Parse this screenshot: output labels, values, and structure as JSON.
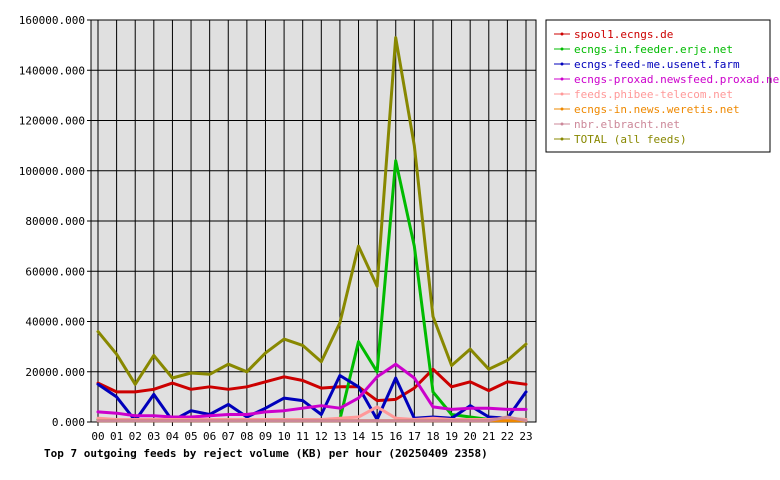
{
  "chart_data": {
    "type": "line",
    "title": "Top 7 outgoing feeds by reject volume (KB) per hour (20250409 2358)",
    "categories": [
      "00",
      "01",
      "02",
      "03",
      "04",
      "05",
      "06",
      "07",
      "08",
      "09",
      "10",
      "11",
      "12",
      "13",
      "14",
      "15",
      "16",
      "17",
      "18",
      "19",
      "20",
      "21",
      "22",
      "23"
    ],
    "yticks": [
      "0.000",
      "20000.000",
      "40000.000",
      "60000.000",
      "80000.000",
      "100000.000",
      "120000.000",
      "140000.000",
      "160000.000"
    ],
    "ylim": [
      0,
      160000
    ],
    "grid": true,
    "legend_position": "right",
    "plot_background": "#e0e0e0",
    "series": [
      {
        "name": "spool1.ecngs.de",
        "color": "#cc0000",
        "values": [
          15500,
          12000,
          12000,
          13000,
          15500,
          13000,
          14000,
          13000,
          14000,
          16000,
          18000,
          16500,
          13500,
          14000,
          14000,
          8500,
          9000,
          13500,
          21000,
          14000,
          16000,
          12500,
          16000,
          15000
        ]
      },
      {
        "name": "ecngs-in.feeder.erje.net",
        "color": "#00bb00",
        "values": [
          1000,
          1000,
          1000,
          1000,
          1000,
          1000,
          1000,
          1000,
          1000,
          1000,
          1000,
          1000,
          1000,
          1000,
          32000,
          20000,
          104000,
          70000,
          12000,
          3000,
          2000,
          1000,
          1000,
          1000
        ]
      },
      {
        "name": "ecngs-feed-me.usenet.farm",
        "color": "#0000bb",
        "values": [
          15000,
          10000,
          500,
          11000,
          500,
          4500,
          3000,
          7000,
          2000,
          5500,
          9500,
          8500,
          3000,
          18500,
          14000,
          1000,
          17500,
          1500,
          2000,
          1500,
          6500,
          2000,
          1500,
          12000
        ]
      },
      {
        "name": "ecngs-proxad.newsfeed.proxad.net",
        "color": "#cc00cc",
        "values": [
          4000,
          3500,
          2500,
          2500,
          2000,
          2000,
          2500,
          3000,
          3000,
          4000,
          4500,
          5500,
          6500,
          5500,
          9500,
          18000,
          23000,
          17500,
          6000,
          5000,
          5500,
          5500,
          5000,
          5000
        ]
      },
      {
        "name": "feeds.phibee-telecom.net",
        "color": "#ff9999",
        "values": [
          1500,
          1000,
          1000,
          1000,
          1000,
          1000,
          1000,
          1000,
          1000,
          1000,
          1000,
          1000,
          1000,
          1500,
          2000,
          6000,
          1500,
          1000,
          1500,
          1000,
          1000,
          1000,
          1500,
          1000
        ]
      },
      {
        "name": "ecngs-in.news.weretis.net",
        "color": "#ee8800",
        "values": [
          500,
          500,
          500,
          500,
          500,
          500,
          500,
          500,
          500,
          500,
          500,
          500,
          500,
          500,
          500,
          500,
          500,
          500,
          500,
          500,
          500,
          500,
          500,
          500
        ]
      },
      {
        "name": "nbr.elbracht.net",
        "color": "#cc8899",
        "values": [
          500,
          500,
          500,
          500,
          500,
          500,
          500,
          500,
          500,
          500,
          500,
          500,
          500,
          500,
          500,
          500,
          500,
          500,
          500,
          500,
          500,
          500,
          2000,
          500
        ]
      },
      {
        "name": "TOTAL (all feeds)",
        "color": "#888800",
        "values": [
          36000,
          27000,
          15000,
          26500,
          17500,
          19500,
          19000,
          23000,
          20000,
          27500,
          33000,
          30500,
          24000,
          39500,
          70000,
          54000,
          153000,
          110000,
          42000,
          22500,
          29000,
          21000,
          24500,
          31000
        ]
      }
    ]
  }
}
